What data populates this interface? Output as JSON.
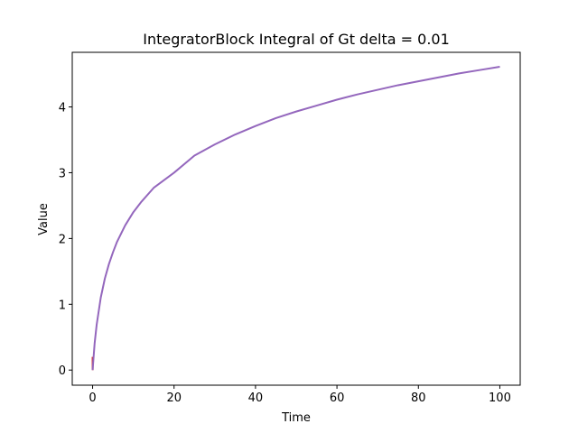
{
  "chart_data": {
    "type": "line",
    "title": "IntegratorBlock Integral of Gt delta = 0.01",
    "xlabel": "Time",
    "ylabel": "Value",
    "xlim": [
      -5,
      105
    ],
    "ylim": [
      -0.23,
      4.83
    ],
    "x_ticks": [
      0,
      20,
      40,
      60,
      80,
      100
    ],
    "y_ticks": [
      0,
      1,
      2,
      3,
      4
    ],
    "x_tick_labels": [
      "0",
      "20",
      "40",
      "60",
      "80",
      "100"
    ],
    "y_tick_labels": [
      "0",
      "1",
      "2",
      "3",
      "4"
    ],
    "grid": false,
    "legend": "none",
    "series": [
      {
        "color": "#d62728",
        "x": [
          0,
          0.01,
          0.02
        ],
        "y": [
          0.2,
          0.1,
          0.0
        ]
      },
      {
        "color": "#9467bd",
        "x": [
          0,
          0.5,
          1,
          2,
          3,
          4,
          5,
          6,
          8,
          10,
          12,
          15,
          20,
          25,
          30,
          35,
          40,
          45,
          50,
          55,
          60,
          65,
          70,
          75,
          80,
          85,
          90,
          95,
          100
        ],
        "y": [
          0,
          0.41,
          0.69,
          1.1,
          1.39,
          1.61,
          1.79,
          1.95,
          2.2,
          2.4,
          2.56,
          2.77,
          3.0,
          3.26,
          3.43,
          3.58,
          3.71,
          3.83,
          3.93,
          4.02,
          4.11,
          4.19,
          4.26,
          4.33,
          4.39,
          4.45,
          4.51,
          4.56,
          4.61
        ]
      }
    ]
  }
}
